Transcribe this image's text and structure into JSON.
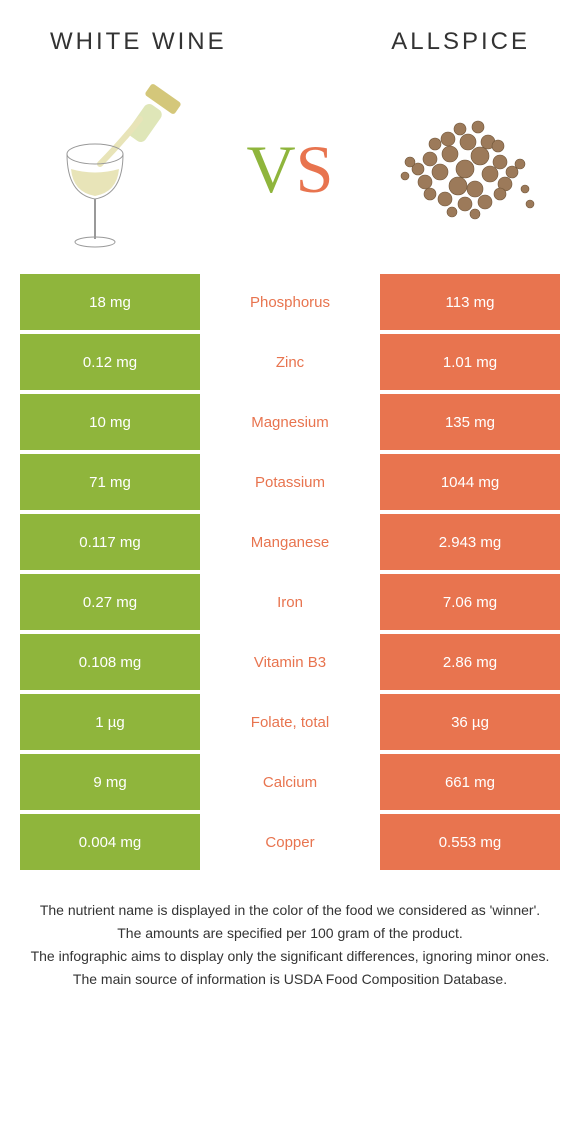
{
  "header": {
    "left_title": "WHITE WINE",
    "right_title": "ALLSPICE"
  },
  "vs_label": {
    "v": "V",
    "s": "S"
  },
  "colors": {
    "left_bg": "#8fb53c",
    "right_bg": "#e8744f",
    "left_text": "#8fb53c",
    "right_text": "#e8744f"
  },
  "rows": [
    {
      "left": "18 mg",
      "name": "Phosphorus",
      "right": "113 mg",
      "winner": "right"
    },
    {
      "left": "0.12 mg",
      "name": "Zinc",
      "right": "1.01 mg",
      "winner": "right"
    },
    {
      "left": "10 mg",
      "name": "Magnesium",
      "right": "135 mg",
      "winner": "right"
    },
    {
      "left": "71 mg",
      "name": "Potassium",
      "right": "1044 mg",
      "winner": "right"
    },
    {
      "left": "0.117 mg",
      "name": "Manganese",
      "right": "2.943 mg",
      "winner": "right"
    },
    {
      "left": "0.27 mg",
      "name": "Iron",
      "right": "7.06 mg",
      "winner": "right"
    },
    {
      "left": "0.108 mg",
      "name": "Vitamin B3",
      "right": "2.86 mg",
      "winner": "right"
    },
    {
      "left": "1 µg",
      "name": "Folate, total",
      "right": "36 µg",
      "winner": "right"
    },
    {
      "left": "9 mg",
      "name": "Calcium",
      "right": "661 mg",
      "winner": "right"
    },
    {
      "left": "0.004 mg",
      "name": "Copper",
      "right": "0.553 mg",
      "winner": "right"
    }
  ],
  "notes": [
    "The nutrient name is displayed in the color of the food we considered as 'winner'.",
    "The amounts are specified per 100 gram of the product.",
    "The infographic aims to display only the significant differences, ignoring minor ones.",
    "The main source of information is USDA Food Composition Database."
  ]
}
